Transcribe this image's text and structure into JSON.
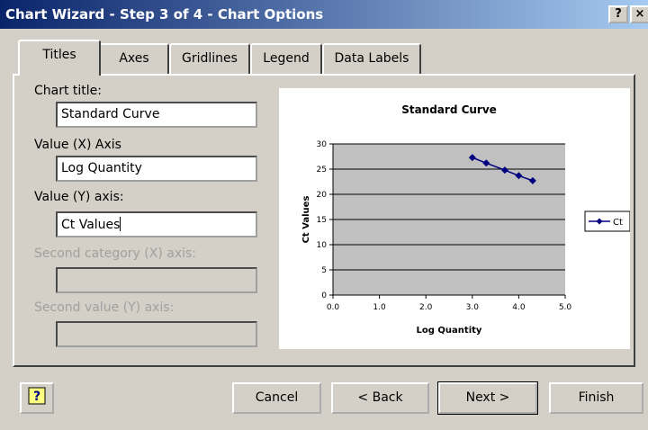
{
  "window": {
    "title": "Chart Wizard - Step 3 of 4 - Chart Options",
    "help_button": "?",
    "close_button": "×"
  },
  "tabs": [
    "Titles",
    "Axes",
    "Gridlines",
    "Legend",
    "Data Labels"
  ],
  "selected_tab": 0,
  "fields": [
    {
      "label": "Chart title:",
      "value": "Standard Curve",
      "enabled": true
    },
    {
      "label": "Value (X) Axis",
      "value": "Log Quantity",
      "enabled": true
    },
    {
      "label": "Value (Y) axis:",
      "value": "Ct Values",
      "enabled": true
    },
    {
      "label": "Second category (X) axis:",
      "value": "",
      "enabled": false
    },
    {
      "label": "Second value (Y) axis:",
      "value": "",
      "enabled": false
    }
  ],
  "footer": {
    "help_button": "?",
    "buttons": [
      "Cancel",
      "< Back",
      "Next >",
      "Finish"
    ],
    "default_button": 2
  },
  "chart_data": {
    "type": "line",
    "title": "Standard Curve",
    "x_label": "Log Quantity",
    "y_label": "Ct Values",
    "series": [
      {
        "name": "Ct",
        "color": "#000080",
        "x": [
          3.0,
          3.3,
          3.7,
          4.0,
          4.3
        ],
        "values": [
          27.3,
          26.2,
          24.8,
          23.7,
          22.7
        ]
      }
    ],
    "xlim": [
      0,
      5
    ],
    "xticks": [
      {
        "value": 0,
        "label": "0.0"
      },
      {
        "value": 1,
        "label": "1.0"
      },
      {
        "value": 2,
        "label": "2.0"
      },
      {
        "value": 3,
        "label": "3.0"
      },
      {
        "value": 4,
        "label": "4.0"
      },
      {
        "value": 5,
        "label": "5.0"
      }
    ],
    "ylim": [
      0,
      30
    ],
    "yticks": [
      0,
      5,
      10,
      15,
      20,
      25,
      30
    ],
    "grid": true,
    "legend": "right"
  }
}
